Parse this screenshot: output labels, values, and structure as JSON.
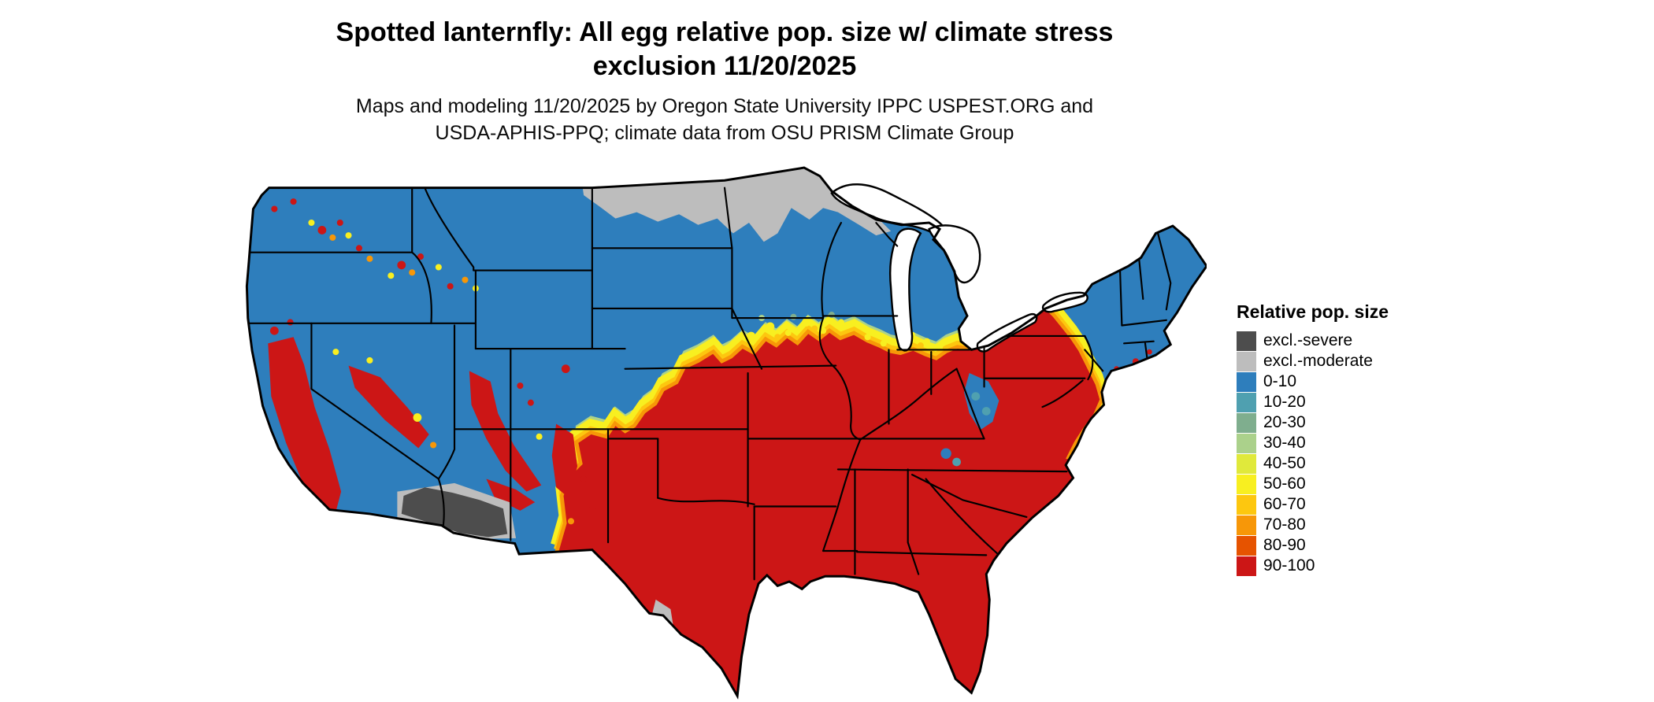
{
  "title": {
    "line1": "Spotted lanternfly: All egg relative pop. size w/ climate stress",
    "line2": "exclusion 11/20/2025"
  },
  "subtitle": {
    "line1": "Maps and modeling 11/20/2025 by Oregon State University IPPC USPEST.ORG and",
    "line2": "USDA-APHIS-PPQ; climate data from OSU PRISM Climate Group"
  },
  "legend": {
    "title": "Relative pop. size",
    "items": [
      {
        "label": "excl.-severe",
        "color": "#4d4d4d"
      },
      {
        "label": "excl.-moderate",
        "color": "#bdbdbd"
      },
      {
        "label": "0-10",
        "color": "#2e7ebc"
      },
      {
        "label": "10-20",
        "color": "#4fa0b0"
      },
      {
        "label": "20-30",
        "color": "#7fae8e"
      },
      {
        "label": "30-40",
        "color": "#abd18b"
      },
      {
        "label": "40-50",
        "color": "#e0e93b"
      },
      {
        "label": "50-60",
        "color": "#f8ef20"
      },
      {
        "label": "60-70",
        "color": "#fdc70f"
      },
      {
        "label": "70-80",
        "color": "#f79708"
      },
      {
        "label": "80-90",
        "color": "#e65300"
      },
      {
        "label": "90-100",
        "color": "#cc1616"
      }
    ]
  },
  "colors": {
    "excl-severe": "#4d4d4d",
    "excl-moderate": "#bdbdbd",
    "pop-0-10": "#2e7ebc",
    "pop-10-20": "#4fa0b0",
    "pop-20-30": "#7fae8e",
    "pop-30-40": "#abd18b",
    "pop-40-50": "#e0e93b",
    "pop-50-60": "#f8ef20",
    "pop-60-70": "#fdc70f",
    "pop-70-80": "#f79708",
    "pop-80-90": "#e65300",
    "pop-90-100": "#cc1616",
    "border": "#000000",
    "background": "#ffffff"
  }
}
